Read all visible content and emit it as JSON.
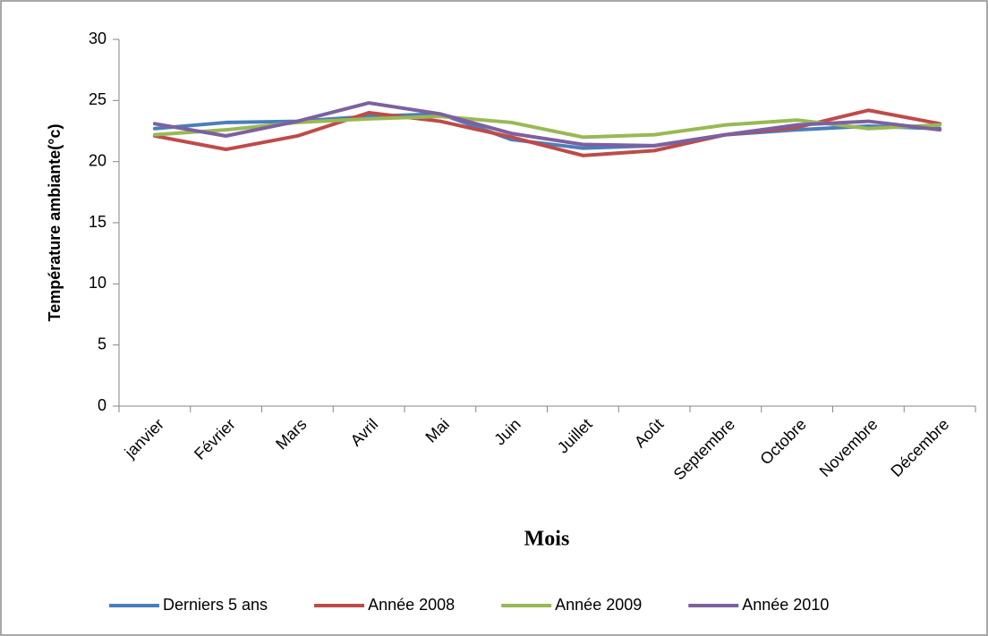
{
  "chart_data": {
    "type": "line",
    "y_label": "Température ambiante(°c)",
    "x_label": "Mois",
    "categories": [
      "janvier",
      "Février",
      "Mars",
      "Avril",
      "Mai",
      "Juin",
      "Juillet",
      "Août",
      "Septembre",
      "Octobre",
      "Novembre",
      "Décembre"
    ],
    "series": [
      {
        "name": "Derniers 5 ans",
        "color": "#4a7ebb",
        "values": [
          22.7,
          23.2,
          23.3,
          23.7,
          23.9,
          21.8,
          21.1,
          21.3,
          22.2,
          22.6,
          22.9,
          22.7
        ]
      },
      {
        "name": "Année 2008",
        "color": "#be4b48",
        "values": [
          22.1,
          21.0,
          22.1,
          24.0,
          23.3,
          22.0,
          20.5,
          20.9,
          22.2,
          22.8,
          24.2,
          23.1
        ]
      },
      {
        "name": "Année 2009",
        "color": "#98b954",
        "values": [
          22.2,
          22.6,
          23.2,
          23.5,
          23.7,
          23.2,
          22.0,
          22.2,
          23.0,
          23.4,
          22.7,
          23.0
        ]
      },
      {
        "name": "Année 2010",
        "color": "#7d60a0",
        "values": [
          23.1,
          22.1,
          23.3,
          24.8,
          23.9,
          22.3,
          21.4,
          21.3,
          22.2,
          23.0,
          23.3,
          22.6
        ]
      }
    ],
    "ylim": [
      0,
      30
    ],
    "yticks": [
      0,
      5,
      10,
      15,
      20,
      25,
      30
    ],
    "grid": false,
    "legend": "bottom"
  }
}
